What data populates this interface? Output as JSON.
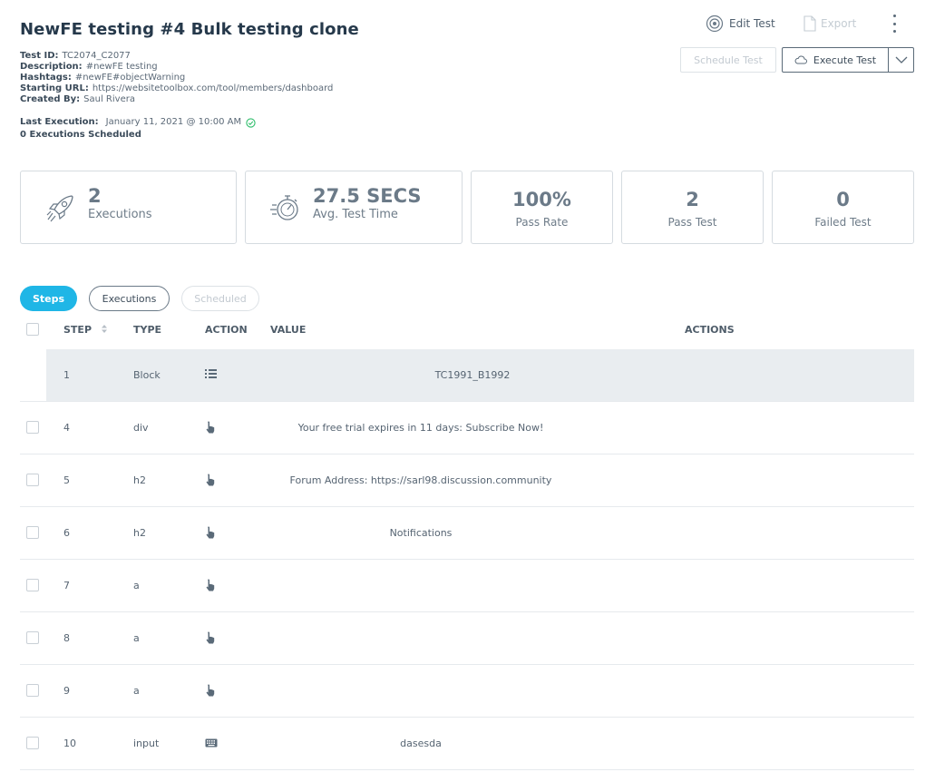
{
  "header": {
    "title": "NewFE testing #4 Bulk testing clone",
    "meta": [
      {
        "label": "Test ID:",
        "value": "TC2074_C2077"
      },
      {
        "label": "Description:",
        "value": "#newFE testing"
      },
      {
        "label": "Hashtags:",
        "value": "#newFE#objectWarning"
      },
      {
        "label": "Starting URL:",
        "value": "https://websitetoolbox.com/tool/members/dashboard"
      },
      {
        "label": "Created By:",
        "value": "Saul Rivera"
      }
    ],
    "last_execution_label": "Last Execution:",
    "last_execution_value": "January 11, 2021 @ 10:00 AM",
    "scheduled_text": "0 Executions Scheduled"
  },
  "toolbar": {
    "edit_label": "Edit Test",
    "export_label": "Export",
    "schedule_label": "Schedule Test",
    "execute_label": "Execute Test"
  },
  "stats": {
    "executions_value": "2",
    "executions_label": "Executions",
    "avg_time_value": "27.5 SECS",
    "avg_time_label": "Avg. Test Time",
    "pass_rate_value": "100%",
    "pass_rate_label": "Pass Rate",
    "pass_test_value": "2",
    "pass_test_label": "Pass Test",
    "failed_test_value": "0",
    "failed_test_label": "Failed Test"
  },
  "tabs": {
    "steps": "Steps",
    "executions": "Executions",
    "scheduled": "Scheduled"
  },
  "table": {
    "headers": {
      "step": "STEP",
      "type": "TYPE",
      "action": "ACTION",
      "value": "VALUE",
      "actions": "ACTIONS"
    },
    "rows": [
      {
        "step": "1",
        "type": "Block",
        "action_icon": "list-icon",
        "value": "TC1991_B1992",
        "highlight": true
      },
      {
        "step": "4",
        "type": "div",
        "action_icon": "pointer-hand-icon",
        "value": "Your free trial expires in 11 days: Subscribe Now!"
      },
      {
        "step": "5",
        "type": "h2",
        "action_icon": "pointer-hand-icon",
        "value": "Forum Address: https://sarl98.discussion.community"
      },
      {
        "step": "6",
        "type": "h2",
        "action_icon": "pointer-hand-icon",
        "value": "Notifications"
      },
      {
        "step": "7",
        "type": "a",
        "action_icon": "pointer-hand-icon",
        "value": ""
      },
      {
        "step": "8",
        "type": "a",
        "action_icon": "pointer-hand-icon",
        "value": ""
      },
      {
        "step": "9",
        "type": "a",
        "action_icon": "pointer-hand-icon",
        "value": ""
      },
      {
        "step": "10",
        "type": "input",
        "action_icon": "keyboard-icon",
        "value": "dasesda"
      }
    ]
  }
}
